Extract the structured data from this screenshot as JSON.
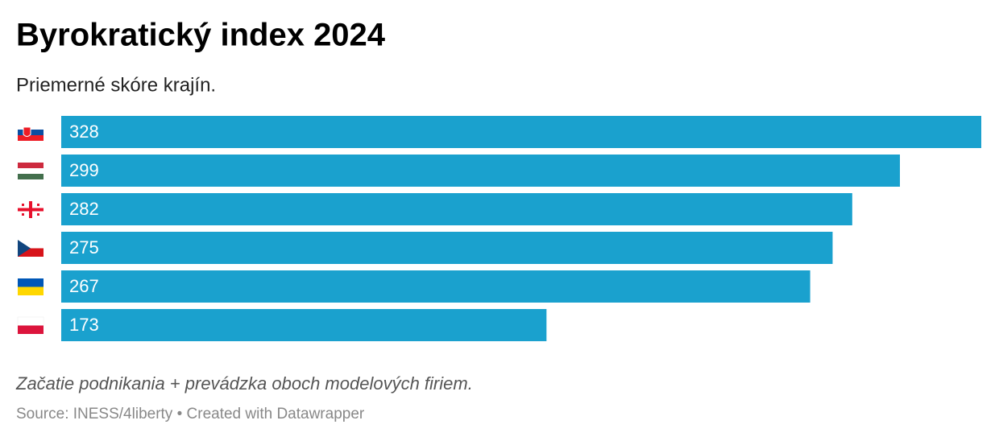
{
  "chart_data": {
    "type": "bar",
    "orientation": "horizontal",
    "title": "Byrokratický index 2024",
    "subtitle": "Priemerné skóre krajín.",
    "categories": [
      null,
      null,
      null,
      null,
      null,
      null
    ],
    "values": [
      328,
      299,
      282,
      275,
      267,
      173
    ],
    "color": "#1aa1ce",
    "note": "Začatie podnikania + prevádzka oboch modelových firiem.",
    "source": "Source: INESS/4liberty • Created with Datawrapper"
  }
}
